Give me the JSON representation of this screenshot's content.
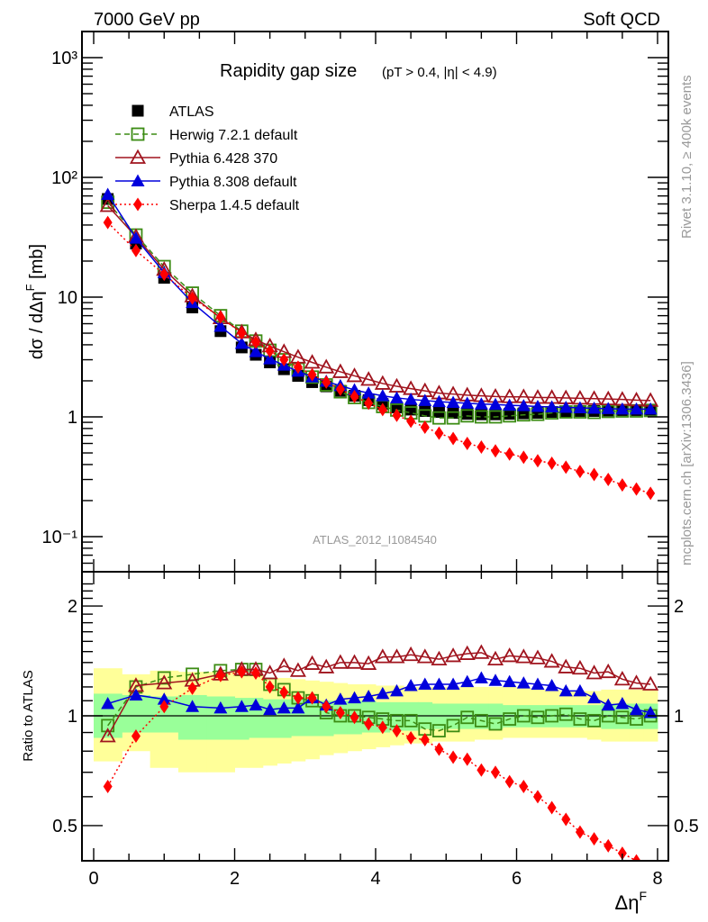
{
  "header": {
    "left": "7000 GeV pp",
    "right": "Soft QCD"
  },
  "side_labels": {
    "rivet": "Rivet 3.1.10, ≥ 400k events",
    "mcplots": "mcplots.cern.ch [arXiv:1306.3436]"
  },
  "chart_data": [
    {
      "type": "scatter",
      "panel": "main",
      "title": "Rapidity gap size",
      "subtitle": "(pT > 0.4, |η| < 4.9)",
      "xlabel": "ΔηF",
      "ylabel": "dσ / dΔηF [mb]",
      "yscale": "log",
      "xlim": [
        -0.15,
        8.15
      ],
      "ylim": [
        0.06,
        1800
      ],
      "yticks": [
        {
          "v": 1000,
          "label": "10³"
        },
        {
          "v": 100,
          "label": "10²"
        },
        {
          "v": 10,
          "label": "10"
        },
        {
          "v": 1,
          "label": "1"
        },
        {
          "v": 0.1,
          "label": "10⁻¹"
        }
      ],
      "annotation": "ATLAS_2012_I1084540",
      "legend_position": "top-left",
      "x": [
        0.2,
        0.6,
        1.0,
        1.4,
        1.8,
        2.1,
        2.3,
        2.5,
        2.7,
        2.9,
        3.1,
        3.3,
        3.5,
        3.7,
        3.9,
        4.1,
        4.3,
        4.5,
        4.7,
        4.9,
        5.1,
        5.3,
        5.5,
        5.7,
        5.9,
        6.1,
        6.3,
        6.5,
        6.7,
        6.9,
        7.1,
        7.3,
        7.5,
        7.7,
        7.9
      ],
      "series": [
        {
          "name": "ATLAS",
          "color": "#000000",
          "marker": "filled-square",
          "line": "none",
          "values": [
            66,
            28,
            14.5,
            8.2,
            5.2,
            3.8,
            3.3,
            2.85,
            2.5,
            2.2,
            1.95,
            1.8,
            1.65,
            1.5,
            1.38,
            1.28,
            1.2,
            1.15,
            1.12,
            1.1,
            1.08,
            1.06,
            1.05,
            1.05,
            1.06,
            1.07,
            1.08,
            1.1,
            1.1,
            1.12,
            1.12,
            1.13,
            1.14,
            1.14,
            1.15
          ]
        },
        {
          "name": "Herwig 7.2.1 default",
          "color": "#3c8c14",
          "marker": "open-square",
          "line": "dashed",
          "values": [
            62,
            33,
            18,
            10.8,
            7.0,
            5.2,
            4.3,
            3.6,
            3.0,
            2.5,
            2.15,
            1.85,
            1.62,
            1.45,
            1.32,
            1.22,
            1.14,
            1.08,
            1.02,
            0.98,
            0.98,
            1.02,
            1.0,
            1.0,
            1.02,
            1.04,
            1.05,
            1.08,
            1.1,
            1.1,
            1.09,
            1.11,
            1.12,
            1.12,
            1.13
          ]
        },
        {
          "name": "Pythia 6.428 370",
          "color": "#a0141e",
          "marker": "open-triangle",
          "line": "solid",
          "values": [
            58,
            32,
            17,
            10.2,
            6.7,
            5.1,
            4.4,
            3.9,
            3.5,
            3.15,
            2.85,
            2.6,
            2.38,
            2.2,
            2.05,
            1.9,
            1.8,
            1.72,
            1.65,
            1.58,
            1.55,
            1.52,
            1.5,
            1.48,
            1.47,
            1.47,
            1.45,
            1.45,
            1.44,
            1.43,
            1.42,
            1.41,
            1.4,
            1.38,
            1.37
          ]
        },
        {
          "name": "Pythia 8.308 default",
          "color": "#0000dc",
          "marker": "filled-triangle",
          "line": "solid",
          "values": [
            72,
            31,
            16,
            9.0,
            5.7,
            4.1,
            3.5,
            3.05,
            2.7,
            2.4,
            2.15,
            1.98,
            1.82,
            1.68,
            1.58,
            1.5,
            1.44,
            1.4,
            1.37,
            1.34,
            1.32,
            1.3,
            1.28,
            1.27,
            1.25,
            1.24,
            1.22,
            1.21,
            1.2,
            1.19,
            1.18,
            1.17,
            1.16,
            1.16,
            1.16
          ]
        },
        {
          "name": "Sherpa 1.4.5 default",
          "color": "#ff0000",
          "marker": "filled-diamond",
          "line": "dotted",
          "values": [
            42,
            24.5,
            15.5,
            9.8,
            6.8,
            5.0,
            4.2,
            3.55,
            3.0,
            2.6,
            2.25,
            1.95,
            1.7,
            1.48,
            1.3,
            1.15,
            1.03,
            0.92,
            0.82,
            0.73,
            0.66,
            0.6,
            0.56,
            0.52,
            0.49,
            0.46,
            0.43,
            0.41,
            0.38,
            0.35,
            0.33,
            0.3,
            0.27,
            0.25,
            0.23
          ]
        }
      ]
    },
    {
      "type": "scatter",
      "panel": "ratio",
      "ylabel": "Ratio to ATLAS",
      "xlabel": "ΔηF",
      "yscale": "log",
      "xlim": [
        -0.15,
        8.15
      ],
      "ylim": [
        0.39,
        2.35
      ],
      "xticks": [
        {
          "v": 0,
          "label": "0"
        },
        {
          "v": 2,
          "label": "2"
        },
        {
          "v": 4,
          "label": "4"
        },
        {
          "v": 6,
          "label": "6"
        },
        {
          "v": 8,
          "label": "8"
        }
      ],
      "yticks": [
        {
          "v": 0.5,
          "label": "0.5"
        },
        {
          "v": 1,
          "label": "1"
        },
        {
          "v": 2,
          "label": "2"
        }
      ],
      "bands": {
        "bin_edges": [
          0,
          0.4,
          0.8,
          1.2,
          1.6,
          2.0,
          2.2,
          2.4,
          2.6,
          2.8,
          3.0,
          3.2,
          3.4,
          3.6,
          3.8,
          4.0,
          4.2,
          4.4,
          4.6,
          4.8,
          5.0,
          5.2,
          5.4,
          5.6,
          5.8,
          6.0,
          6.2,
          6.4,
          6.6,
          6.8,
          7.0,
          7.2,
          7.4,
          7.6,
          7.8,
          8.0
        ],
        "inner_color": "#99ff99",
        "outer_color": "#ffff99",
        "inner_lo": [
          0.87,
          0.9,
          0.9,
          0.86,
          0.86,
          0.86,
          0.87,
          0.87,
          0.87,
          0.88,
          0.88,
          0.88,
          0.89,
          0.89,
          0.9,
          0.9,
          0.91,
          0.91,
          0.92,
          0.92,
          0.92,
          0.92,
          0.92,
          0.92,
          0.93,
          0.93,
          0.93,
          0.93,
          0.93,
          0.93,
          0.93,
          0.92,
          0.92,
          0.92,
          0.92
        ],
        "inner_hi": [
          1.15,
          1.14,
          1.13,
          1.14,
          1.13,
          1.12,
          1.12,
          1.11,
          1.11,
          1.11,
          1.1,
          1.1,
          1.1,
          1.1,
          1.1,
          1.09,
          1.09,
          1.09,
          1.09,
          1.08,
          1.08,
          1.08,
          1.08,
          1.08,
          1.07,
          1.07,
          1.07,
          1.07,
          1.07,
          1.07,
          1.07,
          1.08,
          1.08,
          1.08,
          1.08
        ],
        "outer_lo": [
          0.75,
          0.8,
          0.72,
          0.7,
          0.7,
          0.72,
          0.72,
          0.73,
          0.74,
          0.75,
          0.76,
          0.78,
          0.79,
          0.8,
          0.81,
          0.82,
          0.83,
          0.84,
          0.84,
          0.85,
          0.85,
          0.85,
          0.86,
          0.86,
          0.87,
          0.87,
          0.87,
          0.87,
          0.87,
          0.87,
          0.86,
          0.85,
          0.85,
          0.85,
          0.85
        ],
        "outer_hi": [
          1.35,
          1.3,
          1.33,
          1.32,
          1.32,
          1.3,
          1.29,
          1.27,
          1.27,
          1.26,
          1.25,
          1.24,
          1.23,
          1.22,
          1.22,
          1.21,
          1.21,
          1.2,
          1.2,
          1.2,
          1.2,
          1.2,
          1.2,
          1.2,
          1.2,
          1.19,
          1.18,
          1.18,
          1.17,
          1.17,
          1.17,
          1.18,
          1.18,
          1.18,
          1.18
        ]
      },
      "x": [
        0.2,
        0.6,
        1.0,
        1.4,
        1.8,
        2.1,
        2.3,
        2.5,
        2.7,
        2.9,
        3.1,
        3.3,
        3.5,
        3.7,
        3.9,
        4.1,
        4.3,
        4.5,
        4.7,
        4.9,
        5.1,
        5.3,
        5.5,
        5.7,
        5.9,
        6.1,
        6.3,
        6.5,
        6.7,
        6.9,
        7.1,
        7.3,
        7.5,
        7.7,
        7.9
      ],
      "series": [
        {
          "name": "Herwig 7.2.1 default",
          "color": "#3c8c14",
          "marker": "open-square",
          "line": "dashed",
          "values": [
            0.94,
            1.2,
            1.27,
            1.3,
            1.33,
            1.34,
            1.34,
            1.22,
            1.18,
            1.12,
            1.1,
            1.02,
            1.0,
            1.0,
            0.99,
            0.98,
            0.97,
            0.97,
            0.92,
            0.91,
            0.94,
            0.99,
            0.97,
            0.95,
            0.98,
            1.0,
            0.99,
            1.0,
            1.01,
            0.98,
            0.97,
            1.0,
            0.99,
            0.98,
            1.0
          ]
        },
        {
          "name": "Pythia 6.428 370",
          "color": "#a0141e",
          "marker": "open-triangle",
          "line": "solid",
          "values": [
            0.88,
            1.21,
            1.23,
            1.25,
            1.3,
            1.34,
            1.34,
            1.31,
            1.37,
            1.33,
            1.39,
            1.36,
            1.4,
            1.4,
            1.39,
            1.45,
            1.45,
            1.47,
            1.45,
            1.43,
            1.46,
            1.48,
            1.49,
            1.43,
            1.46,
            1.45,
            1.44,
            1.41,
            1.36,
            1.35,
            1.31,
            1.32,
            1.26,
            1.23,
            1.22
          ]
        },
        {
          "name": "Pythia 8.308 default",
          "color": "#0000dc",
          "marker": "filled-triangle",
          "line": "solid",
          "values": [
            1.08,
            1.14,
            1.11,
            1.06,
            1.05,
            1.06,
            1.07,
            1.04,
            1.05,
            1.05,
            1.12,
            1.07,
            1.11,
            1.12,
            1.13,
            1.15,
            1.17,
            1.21,
            1.22,
            1.22,
            1.22,
            1.24,
            1.27,
            1.25,
            1.24,
            1.23,
            1.22,
            1.21,
            1.17,
            1.17,
            1.12,
            1.07,
            1.08,
            1.04,
            1.02
          ]
        },
        {
          "name": "Sherpa 1.4.5 default",
          "color": "#ff0000",
          "marker": "filled-diamond",
          "line": "dotted",
          "values": [
            0.64,
            0.88,
            1.06,
            1.19,
            1.29,
            1.32,
            1.31,
            1.2,
            1.16,
            1.12,
            1.12,
            1.06,
            1.02,
            0.99,
            0.95,
            0.93,
            0.91,
            0.87,
            0.86,
            0.81,
            0.77,
            0.76,
            0.71,
            0.7,
            0.66,
            0.64,
            0.6,
            0.56,
            0.52,
            0.48,
            0.46,
            0.44,
            0.42,
            0.4,
            0.37
          ]
        }
      ]
    }
  ]
}
